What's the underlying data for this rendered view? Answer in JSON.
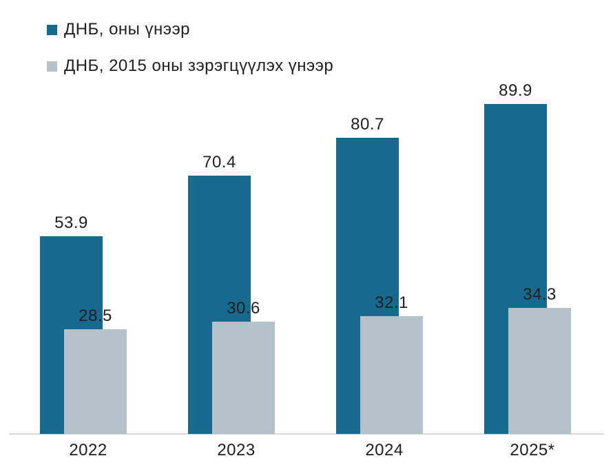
{
  "chart_data": {
    "type": "bar",
    "categories": [
      "2022",
      "2023",
      "2024",
      "2025*"
    ],
    "series": [
      {
        "name": "ДНБ, оны үнээр",
        "values": [
          53.9,
          70.4,
          80.7,
          89.9
        ],
        "color": "#17698D"
      },
      {
        "name": "ДНБ, 2015 оны зэрэгцүүлэх үнээр",
        "values": [
          28.5,
          30.6,
          32.1,
          34.3
        ],
        "color": "#B5C2C9"
      }
    ],
    "title": "",
    "xlabel": "",
    "ylabel": "",
    "ylim": [
      0,
      100
    ],
    "grid": false,
    "legend_position": "top-left",
    "value_labels": true,
    "axis_line_color": "#D9D9D9",
    "text_color": "#1F1F1F",
    "background": "#FFFFFF"
  }
}
